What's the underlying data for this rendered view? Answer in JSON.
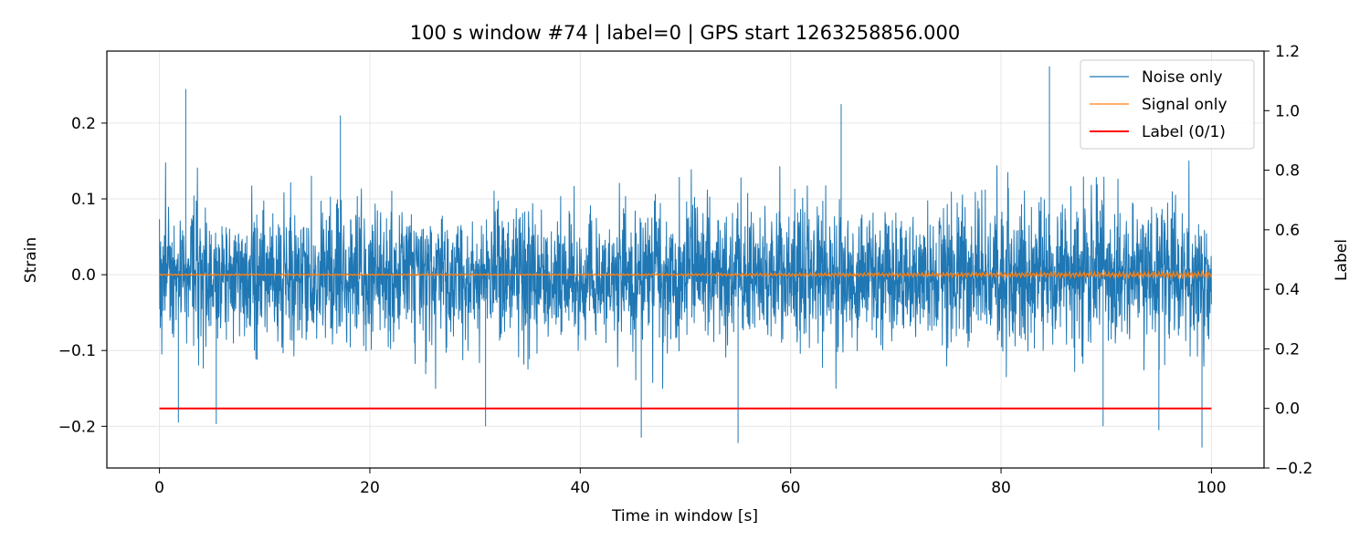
{
  "chart_data": {
    "type": "line",
    "title": "100 s window #74 | label=0 | GPS start 1263258856.000",
    "xlabel": "Time in window [s]",
    "ylabel": "Strain",
    "y2label": "Label",
    "xlim": [
      -5,
      105
    ],
    "ylim": [
      -0.255,
      0.295
    ],
    "y2lim": [
      -0.2,
      1.2
    ],
    "x_ticks": [
      0,
      20,
      40,
      60,
      80,
      100
    ],
    "y_ticks": [
      -0.2,
      -0.1,
      0.0,
      0.1,
      0.2
    ],
    "y2_ticks": [
      -0.2,
      0.0,
      0.2,
      0.4,
      0.6,
      0.8,
      1.0,
      1.2
    ],
    "x_tick_labels": [
      "0",
      "20",
      "40",
      "60",
      "80",
      "100"
    ],
    "y_tick_labels": [
      "−0.2",
      "−0.1",
      "0.0",
      "0.1",
      "0.2"
    ],
    "y2_tick_labels": [
      "−0.2",
      "0.0",
      "0.2",
      "0.4",
      "0.6",
      "0.8",
      "1.0",
      "1.2"
    ],
    "grid": true,
    "legend_position": "top-right",
    "series": [
      {
        "name": "Noise only",
        "color": "#1f77b4",
        "axis": "left",
        "x_range": [
          0,
          100
        ],
        "envelope_typical": [
          -0.12,
          0.12
        ],
        "peaks": [
          {
            "x": 2.5,
            "y": 0.245
          },
          {
            "x": 84.6,
            "y": 0.275
          },
          {
            "x": 64.8,
            "y": 0.225
          },
          {
            "x": 17.2,
            "y": 0.21
          },
          {
            "x": 55.0,
            "y": -0.222
          },
          {
            "x": 99.1,
            "y": -0.228
          },
          {
            "x": 45.8,
            "y": -0.215
          },
          {
            "x": 1.8,
            "y": -0.195
          },
          {
            "x": 5.4,
            "y": -0.197
          },
          {
            "x": 31.0,
            "y": -0.2
          },
          {
            "x": 89.7,
            "y": -0.2
          },
          {
            "x": 95.0,
            "y": -0.205
          }
        ]
      },
      {
        "name": "Signal only",
        "color": "#ff7f0e",
        "axis": "left",
        "x_range": [
          0,
          100
        ],
        "amplitude_max": 0.004
      },
      {
        "name": "Label (0/1)",
        "color": "#ff0000",
        "axis": "right",
        "x": [
          0,
          100
        ],
        "y": [
          0,
          0
        ]
      }
    ]
  }
}
